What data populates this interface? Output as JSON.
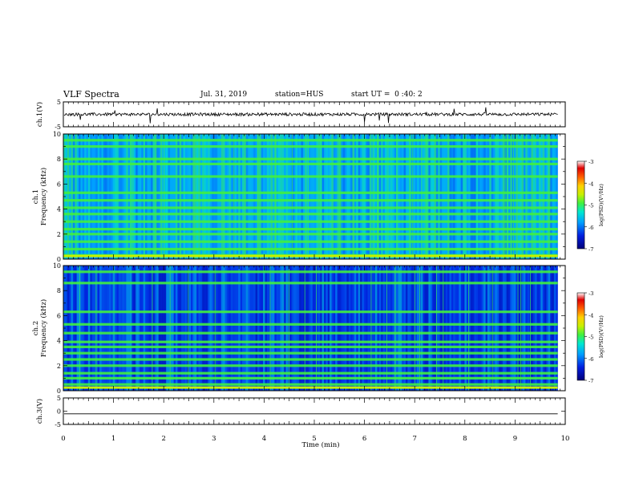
{
  "header": {
    "title": "VLF Spectra",
    "date": "Jul. 31, 2019",
    "station": "station=HUS",
    "start": "start UT =  0 :40: 2"
  },
  "chart_data": [
    {
      "type": "line",
      "panel": "ch1_waveform",
      "ylabel": "ch.1(V)",
      "ylim": [
        -5,
        5
      ],
      "yticks": [
        "5",
        "-5"
      ],
      "xlim": [
        0,
        10
      ],
      "baseline": 0,
      "line_color": "#000000"
    },
    {
      "type": "heatmap",
      "panel": "ch1_spectrogram",
      "ylabel": "ch.1\nFrequency (kHz)",
      "ylim": [
        0,
        10
      ],
      "yticks": [
        "0",
        "2",
        "4",
        "6",
        "8",
        "10"
      ],
      "xlim": [
        0,
        10
      ],
      "data_end_min": 9.85,
      "colorbar": {
        "label": "log(PSD)(V²/Hz)",
        "ticks": [
          "-3",
          "-4",
          "-5",
          "-6",
          "-7"
        ],
        "range": [
          -7,
          -3
        ]
      },
      "bands_khz": [
        0.3,
        0.8,
        1.4,
        2.0,
        2.4,
        3.0,
        3.6,
        4.1,
        4.7,
        5.3,
        6.6,
        7.6,
        8.0,
        9.0,
        9.5
      ]
    },
    {
      "type": "heatmap",
      "panel": "ch2_spectrogram",
      "ylabel": "ch.2\nFrequency (kHz)",
      "ylim": [
        0,
        10
      ],
      "yticks": [
        "0",
        "2",
        "4",
        "6",
        "8",
        "10"
      ],
      "xlim": [
        0,
        10
      ],
      "data_end_min": 9.85,
      "colorbar": {
        "label": "log(PSD)(V²/Hz)",
        "ticks": [
          "-3",
          "-4",
          "-5",
          "-6",
          "-7"
        ],
        "range": [
          -7,
          -3
        ]
      },
      "bands_khz": [
        0.5,
        1.0,
        1.4,
        2.0,
        2.5,
        3.0,
        3.5,
        3.9,
        4.6,
        5.3,
        6.3,
        8.6,
        9.5
      ]
    },
    {
      "type": "line",
      "panel": "ch3_waveform",
      "ylabel": "ch.3(V)",
      "ylim": [
        -5,
        5
      ],
      "yticks": [
        "5",
        "0",
        "-5"
      ],
      "xlim": [
        0,
        10
      ],
      "baseline": -1,
      "line_color": "#000000",
      "xlabel": "Time (min)",
      "xticks": [
        "0",
        "1",
        "2",
        "3",
        "4",
        "5",
        "6",
        "7",
        "8",
        "9",
        "10"
      ]
    }
  ]
}
